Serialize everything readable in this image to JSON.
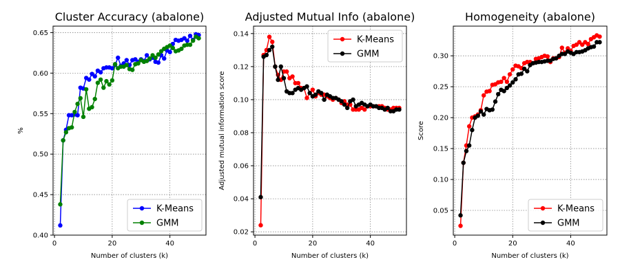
{
  "chart_data": [
    {
      "type": "line",
      "title": "Cluster Accuracy (abalone)",
      "xlabel": "Number of clusters (k)",
      "ylabel": "%",
      "xlim": [
        -0.5,
        52.5
      ],
      "ylim": [
        0.4,
        0.658
      ],
      "xticks": [
        0,
        20,
        40
      ],
      "yticks": [
        0.4,
        0.45,
        0.5,
        0.55,
        0.6,
        0.65
      ],
      "ytick_format": 2,
      "grid": true,
      "legend_position": "lower-right",
      "x": [
        2,
        3,
        4,
        5,
        6,
        7,
        8,
        9,
        10,
        11,
        12,
        13,
        14,
        15,
        16,
        17,
        18,
        19,
        20,
        21,
        22,
        23,
        24,
        25,
        26,
        27,
        28,
        29,
        30,
        31,
        32,
        33,
        34,
        35,
        36,
        37,
        38,
        39,
        40,
        41,
        42,
        43,
        44,
        45,
        46,
        47,
        48,
        49,
        50
      ],
      "series": [
        {
          "name": "K-Means",
          "color": "#0000ff",
          "values": [
            0.412,
            0.517,
            0.53,
            0.548,
            0.548,
            0.549,
            0.548,
            0.582,
            0.581,
            0.594,
            0.592,
            0.599,
            0.596,
            0.603,
            0.601,
            0.606,
            0.607,
            0.607,
            0.606,
            0.61,
            0.619,
            0.609,
            0.612,
            0.616,
            0.61,
            0.616,
            0.617,
            0.614,
            0.617,
            0.615,
            0.622,
            0.617,
            0.619,
            0.614,
            0.613,
            0.622,
            0.618,
            0.628,
            0.626,
            0.636,
            0.641,
            0.64,
            0.641,
            0.643,
            0.64,
            0.646,
            0.641,
            0.648,
            0.647
          ]
        },
        {
          "name": "GMM",
          "color": "#008000",
          "values": [
            0.438,
            0.517,
            0.527,
            0.532,
            0.533,
            0.552,
            0.562,
            0.569,
            0.546,
            0.58,
            0.556,
            0.558,
            0.568,
            0.588,
            0.592,
            0.582,
            0.59,
            0.586,
            0.591,
            0.611,
            0.606,
            0.608,
            0.608,
            0.61,
            0.605,
            0.604,
            0.611,
            0.612,
            0.616,
            0.614,
            0.615,
            0.618,
            0.622,
            0.619,
            0.623,
            0.627,
            0.63,
            0.632,
            0.634,
            0.631,
            0.627,
            0.628,
            0.63,
            0.634,
            0.635,
            0.635,
            0.64,
            0.645,
            0.643
          ]
        }
      ]
    },
    {
      "type": "line",
      "title": "Adjusted Mutual Info (abalone)",
      "xlabel": "Number of clusters (k)",
      "ylabel": "Adjusted mutual information score",
      "xlim": [
        -0.5,
        52.5
      ],
      "ylim": [
        0.018,
        0.1445
      ],
      "xticks": [
        0,
        20,
        40
      ],
      "yticks": [
        0.02,
        0.04,
        0.06,
        0.08,
        0.1,
        0.12,
        0.14
      ],
      "ytick_format": 2,
      "grid": true,
      "legend_position": "top-right",
      "x": [
        2,
        3,
        4,
        5,
        6,
        7,
        8,
        9,
        10,
        11,
        12,
        13,
        14,
        15,
        16,
        17,
        18,
        19,
        20,
        21,
        22,
        23,
        24,
        25,
        26,
        27,
        28,
        29,
        30,
        31,
        32,
        33,
        34,
        35,
        36,
        37,
        38,
        39,
        40,
        41,
        42,
        43,
        44,
        45,
        46,
        47,
        48,
        49,
        50
      ],
      "series": [
        {
          "name": "K-Means",
          "color": "#ff0000",
          "values": [
            0.024,
            0.127,
            0.13,
            0.138,
            0.135,
            0.12,
            0.115,
            0.112,
            0.117,
            0.117,
            0.113,
            0.114,
            0.11,
            0.11,
            0.107,
            0.107,
            0.101,
            0.104,
            0.106,
            0.102,
            0.104,
            0.103,
            0.103,
            0.102,
            0.101,
            0.1,
            0.101,
            0.1,
            0.098,
            0.099,
            0.097,
            0.097,
            0.094,
            0.094,
            0.094,
            0.095,
            0.094,
            0.096,
            0.096,
            0.096,
            0.096,
            0.096,
            0.096,
            0.095,
            0.094,
            0.094,
            0.095,
            0.095,
            0.095
          ]
        },
        {
          "name": "GMM",
          "color": "#000000",
          "values": [
            0.041,
            0.126,
            0.127,
            0.13,
            0.132,
            0.12,
            0.112,
            0.12,
            0.113,
            0.105,
            0.104,
            0.104,
            0.106,
            0.107,
            0.106,
            0.107,
            0.108,
            0.104,
            0.102,
            0.103,
            0.105,
            0.104,
            0.1,
            0.103,
            0.102,
            0.101,
            0.101,
            0.1,
            0.099,
            0.097,
            0.095,
            0.099,
            0.1,
            0.096,
            0.097,
            0.098,
            0.097,
            0.096,
            0.097,
            0.096,
            0.096,
            0.095,
            0.095,
            0.094,
            0.095,
            0.093,
            0.093,
            0.094,
            0.094
          ]
        }
      ]
    },
    {
      "type": "line",
      "title": "Homogeneity (abalone)",
      "xlabel": "Number of clusters (k)",
      "ylabel": "Score",
      "xlim": [
        -0.5,
        52.5
      ],
      "ylim": [
        0.01,
        0.348
      ],
      "xticks": [
        0,
        20,
        40
      ],
      "yticks": [
        0.05,
        0.1,
        0.15,
        0.2,
        0.25,
        0.3
      ],
      "ytick_format": 2,
      "grid": true,
      "legend_position": "lower-right",
      "x": [
        2,
        3,
        4,
        5,
        6,
        7,
        8,
        9,
        10,
        11,
        12,
        13,
        14,
        15,
        16,
        17,
        18,
        19,
        20,
        21,
        22,
        23,
        24,
        25,
        26,
        27,
        28,
        29,
        30,
        31,
        32,
        33,
        34,
        35,
        36,
        37,
        38,
        39,
        40,
        41,
        42,
        43,
        44,
        45,
        46,
        47,
        48,
        49,
        50
      ],
      "series": [
        {
          "name": "K-Means",
          "color": "#ff0000",
          "values": [
            0.025,
            0.127,
            0.155,
            0.186,
            0.2,
            0.202,
            0.205,
            0.212,
            0.236,
            0.242,
            0.243,
            0.253,
            0.254,
            0.257,
            0.258,
            0.264,
            0.258,
            0.27,
            0.278,
            0.284,
            0.283,
            0.28,
            0.288,
            0.29,
            0.29,
            0.288,
            0.295,
            0.296,
            0.298,
            0.3,
            0.299,
            0.29,
            0.296,
            0.296,
            0.298,
            0.313,
            0.305,
            0.312,
            0.308,
            0.316,
            0.318,
            0.322,
            0.318,
            0.322,
            0.319,
            0.327,
            0.33,
            0.333,
            0.331
          ]
        },
        {
          "name": "GMM",
          "color": "#000000",
          "values": [
            0.042,
            0.127,
            0.146,
            0.155,
            0.18,
            0.2,
            0.203,
            0.21,
            0.205,
            0.214,
            0.212,
            0.213,
            0.226,
            0.238,
            0.245,
            0.243,
            0.248,
            0.252,
            0.257,
            0.262,
            0.27,
            0.271,
            0.279,
            0.275,
            0.285,
            0.288,
            0.289,
            0.29,
            0.29,
            0.291,
            0.292,
            0.292,
            0.295,
            0.296,
            0.3,
            0.303,
            0.303,
            0.307,
            0.305,
            0.303,
            0.306,
            0.306,
            0.307,
            0.309,
            0.312,
            0.314,
            0.315,
            0.322,
            0.322
          ]
        }
      ]
    }
  ]
}
